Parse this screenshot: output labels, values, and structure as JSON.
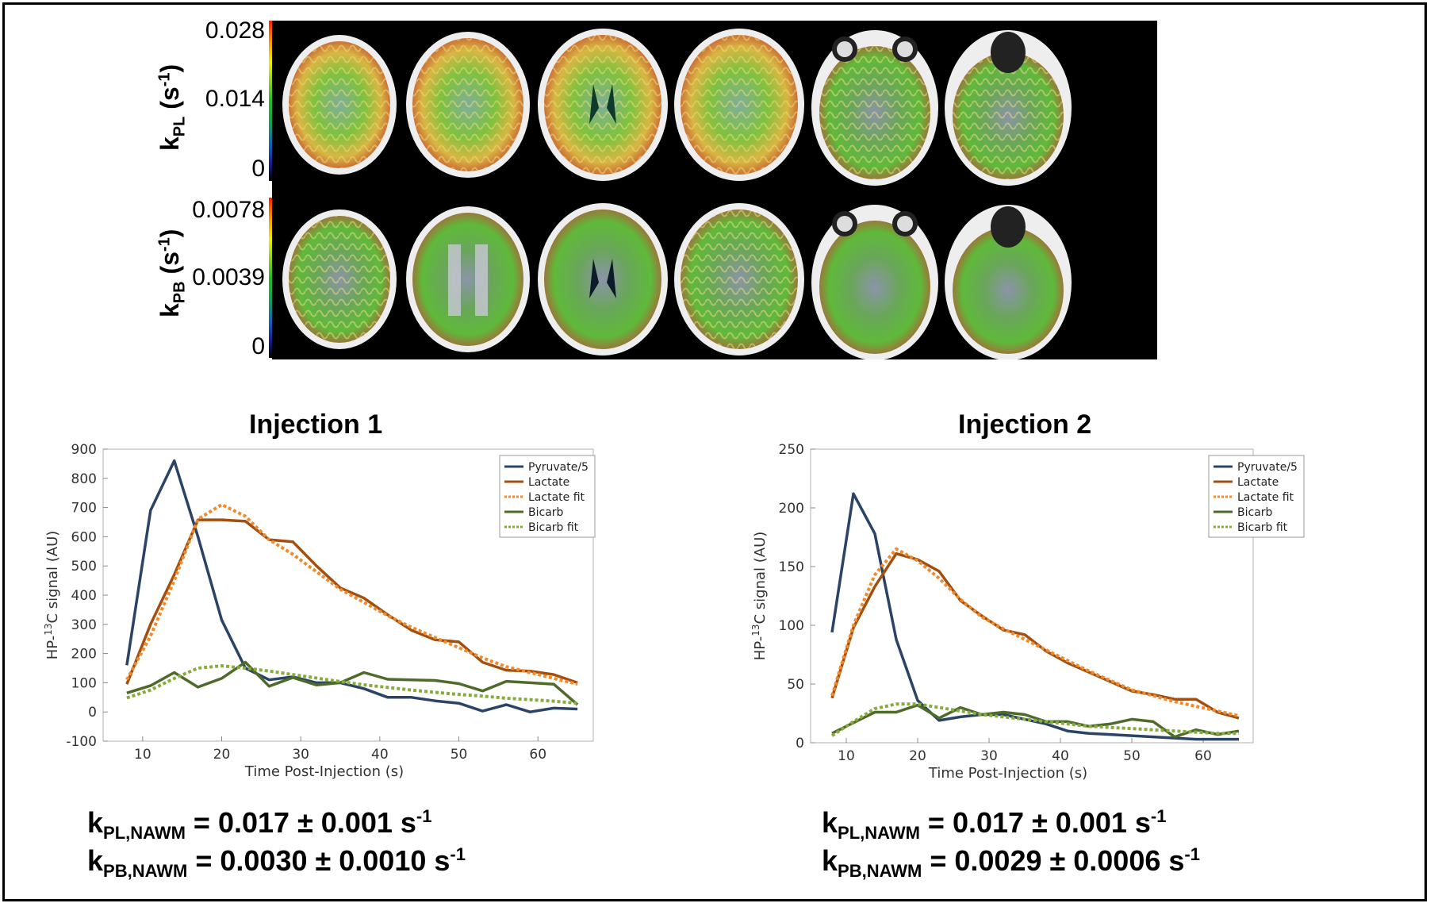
{
  "maps": {
    "rows": [
      {
        "label_main": "k",
        "label_sub": "PL",
        "label_unit": " (s",
        "label_sup": "-1",
        "label_close": ")",
        "ticks": [
          "0.028",
          "0.014",
          "0"
        ]
      },
      {
        "label_main": "k",
        "label_sub": "PB",
        "label_unit": " (s",
        "label_sup": "-1",
        "label_close": ")",
        "ticks": [
          "0.0078",
          "0.0039",
          "0"
        ]
      }
    ]
  },
  "colors": {
    "pyruvate": "#2b4466",
    "lactate": "#a24f10",
    "lactate_fit": "#f08a2c",
    "bicarb": "#4e6b2a",
    "bicarb_fit": "#86ac3e"
  },
  "chart_data": [
    {
      "type": "line",
      "title": "Injection 1",
      "xlabel": "Time Post-Injection (s)",
      "ylabel_pre": "HP-",
      "ylabel_sup": "13",
      "ylabel_post": "C signal (AU)",
      "xlim": [
        5,
        67
      ],
      "ylim": [
        -100,
        900
      ],
      "xticks": [
        10,
        20,
        30,
        40,
        50,
        60
      ],
      "yticks": [
        -100,
        0,
        100,
        200,
        300,
        400,
        500,
        600,
        700,
        800,
        900
      ],
      "legend_position": "top-right",
      "series": [
        {
          "name": "Pyruvate/5",
          "style": "solid",
          "color_key": "pyruvate",
          "x": [
            8,
            11,
            14,
            17,
            20,
            23,
            26,
            29,
            32,
            35,
            38,
            41,
            44,
            47,
            50,
            53,
            56,
            59,
            62,
            65
          ],
          "y": [
            160,
            690,
            860,
            600,
            315,
            150,
            110,
            120,
            100,
            100,
            80,
            50,
            50,
            38,
            30,
            3,
            25,
            0,
            13,
            10
          ]
        },
        {
          "name": "Lactate",
          "style": "solid",
          "color_key": "lactate",
          "x": [
            8,
            11,
            14,
            17,
            20,
            23,
            26,
            29,
            32,
            35,
            38,
            41,
            44,
            47,
            50,
            53,
            56,
            59,
            62,
            65
          ],
          "y": [
            95,
            300,
            470,
            658,
            658,
            653,
            590,
            583,
            500,
            425,
            390,
            333,
            280,
            247,
            240,
            170,
            143,
            140,
            128,
            100
          ]
        },
        {
          "name": "Lactate fit",
          "style": "dotted",
          "color_key": "lactate_fit",
          "x": [
            8,
            11,
            14,
            17,
            20,
            23,
            26,
            29,
            32,
            35,
            38,
            41,
            44,
            47,
            50,
            53,
            56,
            59,
            62,
            65
          ],
          "y": [
            110,
            260,
            450,
            660,
            710,
            670,
            590,
            540,
            480,
            420,
            375,
            330,
            290,
            255,
            220,
            185,
            155,
            135,
            115,
            95
          ]
        },
        {
          "name": "Bicarb",
          "style": "solid",
          "color_key": "bicarb",
          "x": [
            8,
            11,
            14,
            17,
            20,
            23,
            26,
            29,
            32,
            35,
            38,
            41,
            44,
            47,
            50,
            53,
            56,
            59,
            62,
            65
          ],
          "y": [
            65,
            90,
            135,
            85,
            115,
            170,
            88,
            118,
            92,
            100,
            135,
            112,
            110,
            108,
            97,
            72,
            105,
            100,
            95,
            25
          ]
        },
        {
          "name": "Bicarb fit",
          "style": "dotted",
          "color_key": "bicarb_fit",
          "x": [
            8,
            11,
            14,
            17,
            20,
            23,
            26,
            29,
            32,
            35,
            38,
            41,
            44,
            47,
            50,
            53,
            56,
            59,
            62,
            65
          ],
          "y": [
            48,
            75,
            115,
            150,
            158,
            150,
            140,
            128,
            116,
            104,
            93,
            84,
            75,
            67,
            60,
            54,
            47,
            42,
            37,
            30
          ]
        }
      ],
      "k_pl": {
        "k": "k",
        "sub": "PL,NAWM",
        "val": " = 0.017 ± 0.001 s",
        "sup": "-1"
      },
      "k_pb": {
        "k": "k",
        "sub": "PB,NAWM",
        "val": " = 0.0030 ± 0.0010 s",
        "sup": "-1"
      }
    },
    {
      "type": "line",
      "title": "Injection 2",
      "xlabel": "Time Post-Injection (s)",
      "ylabel_pre": "HP-",
      "ylabel_sup": "13",
      "ylabel_post": "C signal (AU)",
      "xlim": [
        5,
        67
      ],
      "ylim": [
        0,
        250
      ],
      "xticks": [
        10,
        20,
        30,
        40,
        50,
        60
      ],
      "yticks": [
        0,
        50,
        100,
        150,
        200,
        250
      ],
      "legend_position": "top-right",
      "series": [
        {
          "name": "Pyruvate/5",
          "style": "solid",
          "color_key": "pyruvate",
          "x": [
            8,
            11,
            14,
            17,
            20,
            23,
            26,
            29,
            32,
            35,
            38,
            41,
            44,
            47,
            50,
            53,
            56,
            59,
            62,
            65
          ],
          "y": [
            94,
            212,
            178,
            88,
            36,
            19,
            22,
            24,
            24,
            20,
            16,
            10,
            8,
            7,
            6,
            5,
            4,
            3,
            3,
            3
          ]
        },
        {
          "name": "Lactate",
          "style": "solid",
          "color_key": "lactate",
          "x": [
            8,
            11,
            14,
            17,
            20,
            23,
            26,
            29,
            32,
            35,
            38,
            41,
            44,
            47,
            50,
            53,
            56,
            59,
            62,
            65
          ],
          "y": [
            38,
            98,
            133,
            161,
            156,
            146,
            121,
            108,
            96,
            92,
            78,
            68,
            60,
            52,
            44,
            41,
            37,
            37,
            26,
            21
          ]
        },
        {
          "name": "Lactate fit",
          "style": "dotted",
          "color_key": "lactate_fit",
          "x": [
            8,
            11,
            14,
            17,
            20,
            23,
            26,
            29,
            32,
            35,
            38,
            41,
            44,
            47,
            50,
            53,
            56,
            59,
            62,
            65
          ],
          "y": [
            40,
            100,
            143,
            165,
            155,
            140,
            122,
            107,
            97,
            88,
            79,
            70,
            61,
            53,
            45,
            40,
            35,
            31,
            27,
            23
          ]
        },
        {
          "name": "Bicarb",
          "style": "solid",
          "color_key": "bicarb",
          "x": [
            8,
            11,
            14,
            17,
            20,
            23,
            26,
            29,
            32,
            35,
            38,
            41,
            44,
            47,
            50,
            53,
            56,
            59,
            62,
            65
          ],
          "y": [
            8,
            17,
            26,
            26,
            32,
            21,
            30,
            24,
            26,
            24,
            18,
            18,
            14,
            16,
            20,
            18,
            5,
            11,
            7,
            10
          ]
        },
        {
          "name": "Bicarb fit",
          "style": "dotted",
          "color_key": "bicarb_fit",
          "x": [
            8,
            11,
            14,
            17,
            20,
            23,
            26,
            29,
            32,
            35,
            38,
            41,
            44,
            47,
            50,
            53,
            56,
            59,
            62,
            65
          ],
          "y": [
            6,
            18,
            29,
            33,
            33,
            30,
            27,
            24,
            22,
            20,
            18,
            16,
            14,
            13,
            12,
            11,
            10,
            9,
            8,
            8
          ]
        }
      ],
      "k_pl": {
        "k": "k",
        "sub": "PL,NAWM",
        "val": " = 0.017 ± 0.001 s",
        "sup": "-1"
      },
      "k_pb": {
        "k": "k",
        "sub": "PB,NAWM",
        "val": " = 0.0029 ± 0.0006 s",
        "sup": "-1"
      }
    }
  ]
}
